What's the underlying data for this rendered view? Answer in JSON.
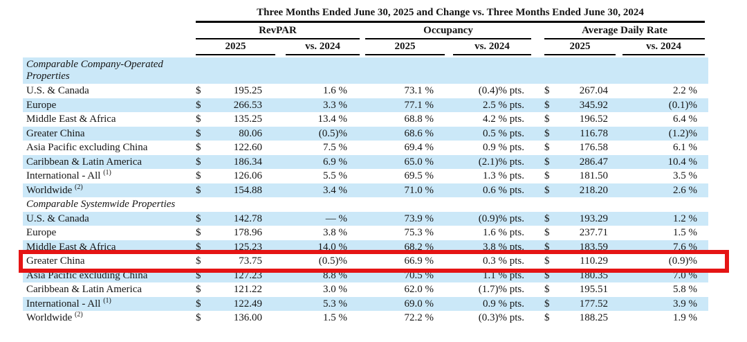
{
  "title": "Three Months Ended June 30, 2025 and Change vs. Three Months Ended June 30, 2024",
  "columns": {
    "groups": [
      {
        "label": "RevPAR",
        "sub": [
          "2025",
          "vs. 2024"
        ]
      },
      {
        "label": "Occupancy",
        "sub": [
          "2025",
          "vs. 2024"
        ]
      },
      {
        "label": "Average Daily Rate",
        "sub": [
          "2025",
          "vs. 2024"
        ]
      }
    ]
  },
  "currency_symbol": "$",
  "colors": {
    "row_stripe_blue": "#cbe8f8",
    "highlight_red": "#e51414",
    "text": "#141414"
  },
  "sections": [
    {
      "header": "Comparable Company-Operated Properties",
      "rows": [
        {
          "label": "U.S. & Canada",
          "sup": "",
          "revpar_2025": "195.25",
          "revpar_vs": "1.6 %",
          "occ_2025": "73.1 %",
          "occ_vs": "(0.4)% pts.",
          "adr_2025": "267.04",
          "adr_vs": "2.2 %",
          "highlighted": false
        },
        {
          "label": "Europe",
          "sup": "",
          "revpar_2025": "266.53",
          "revpar_vs": "3.3 %",
          "occ_2025": "77.1 %",
          "occ_vs": "2.5 % pts.",
          "adr_2025": "345.92",
          "adr_vs": "(0.1)%",
          "highlighted": false
        },
        {
          "label": "Middle East & Africa",
          "sup": "",
          "revpar_2025": "135.25",
          "revpar_vs": "13.4 %",
          "occ_2025": "68.8 %",
          "occ_vs": "4.2 % pts.",
          "adr_2025": "196.52",
          "adr_vs": "6.4 %",
          "highlighted": false
        },
        {
          "label": "Greater China",
          "sup": "",
          "revpar_2025": "80.06",
          "revpar_vs": "(0.5)%",
          "occ_2025": "68.6 %",
          "occ_vs": "0.5 % pts.",
          "adr_2025": "116.78",
          "adr_vs": "(1.2)%",
          "highlighted": false
        },
        {
          "label": "Asia Pacific excluding China",
          "sup": "",
          "revpar_2025": "122.60",
          "revpar_vs": "7.5 %",
          "occ_2025": "69.4 %",
          "occ_vs": "0.9 % pts.",
          "adr_2025": "176.58",
          "adr_vs": "6.1 %",
          "highlighted": false
        },
        {
          "label": "Caribbean & Latin America",
          "sup": "",
          "revpar_2025": "186.34",
          "revpar_vs": "6.9 %",
          "occ_2025": "65.0 %",
          "occ_vs": "(2.1)% pts.",
          "adr_2025": "286.47",
          "adr_vs": "10.4 %",
          "highlighted": false
        },
        {
          "label": "International - All",
          "sup": "(1)",
          "revpar_2025": "126.06",
          "revpar_vs": "5.5 %",
          "occ_2025": "69.5 %",
          "occ_vs": "1.3 % pts.",
          "adr_2025": "181.50",
          "adr_vs": "3.5 %",
          "highlighted": false
        },
        {
          "label": "Worldwide",
          "sup": "(2)",
          "revpar_2025": "154.88",
          "revpar_vs": "3.4 %",
          "occ_2025": "71.0 %",
          "occ_vs": "0.6 % pts.",
          "adr_2025": "218.20",
          "adr_vs": "2.6 %",
          "highlighted": false
        }
      ]
    },
    {
      "header": "Comparable Systemwide Properties",
      "rows": [
        {
          "label": "U.S. & Canada",
          "sup": "",
          "revpar_2025": "142.78",
          "revpar_vs": "— %",
          "occ_2025": "73.9 %",
          "occ_vs": "(0.9)% pts.",
          "adr_2025": "193.29",
          "adr_vs": "1.2 %",
          "highlighted": false
        },
        {
          "label": "Europe",
          "sup": "",
          "revpar_2025": "178.96",
          "revpar_vs": "3.8 %",
          "occ_2025": "75.3 %",
          "occ_vs": "1.6 % pts.",
          "adr_2025": "237.71",
          "adr_vs": "1.5 %",
          "highlighted": false
        },
        {
          "label": "Middle East & Africa",
          "sup": "",
          "revpar_2025": "125.23",
          "revpar_vs": "14.0 %",
          "occ_2025": "68.2 %",
          "occ_vs": "3.8 % pts.",
          "adr_2025": "183.59",
          "adr_vs": "7.6 %",
          "highlighted": false
        },
        {
          "label": "Greater China",
          "sup": "",
          "revpar_2025": "73.75",
          "revpar_vs": "(0.5)%",
          "occ_2025": "66.9 %",
          "occ_vs": "0.3 % pts.",
          "adr_2025": "110.29",
          "adr_vs": "(0.9)%",
          "highlighted": true
        },
        {
          "label": "Asia Pacific excluding China",
          "sup": "",
          "revpar_2025": "127.23",
          "revpar_vs": "8.8 %",
          "occ_2025": "70.5 %",
          "occ_vs": "1.1 % pts.",
          "adr_2025": "180.35",
          "adr_vs": "7.0 %",
          "highlighted": false
        },
        {
          "label": "Caribbean & Latin America",
          "sup": "",
          "revpar_2025": "121.22",
          "revpar_vs": "3.0 %",
          "occ_2025": "62.0 %",
          "occ_vs": "(1.7)% pts.",
          "adr_2025": "195.51",
          "adr_vs": "5.8 %",
          "highlighted": false
        },
        {
          "label": "International - All",
          "sup": "(1)",
          "revpar_2025": "122.49",
          "revpar_vs": "5.3 %",
          "occ_2025": "69.0 %",
          "occ_vs": "0.9 % pts.",
          "adr_2025": "177.52",
          "adr_vs": "3.9 %",
          "highlighted": false
        },
        {
          "label": "Worldwide",
          "sup": "(2)",
          "revpar_2025": "136.00",
          "revpar_vs": "1.5 %",
          "occ_2025": "72.2 %",
          "occ_vs": "(0.3)% pts.",
          "adr_2025": "188.25",
          "adr_vs": "1.9 %",
          "highlighted": false
        }
      ]
    }
  ]
}
